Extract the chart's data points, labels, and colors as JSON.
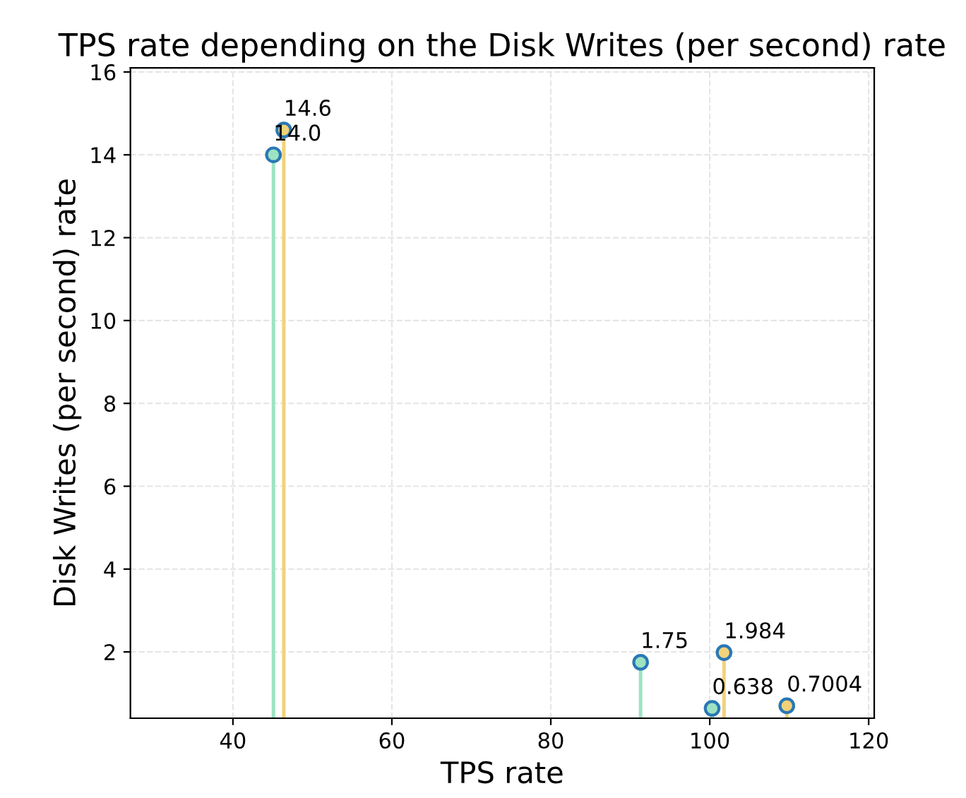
{
  "chart_data": {
    "type": "lollipop",
    "title": "TPS rate depending on the Disk Writes (per second) rate",
    "xlabel": "TPS rate",
    "ylabel": "Disk Writes (per second) rate",
    "series": [
      {
        "color": "#9de3c2",
        "x": [
          45.1,
          91.3,
          100.3
        ],
        "values": [
          14.0,
          1.75,
          0.638
        ],
        "value_labels": [
          "14.0",
          "1.75",
          "0.638"
        ]
      },
      {
        "color": "#f2d27a",
        "x": [
          46.4,
          101.8,
          109.7
        ],
        "values": [
          14.6,
          1.984,
          0.7004
        ],
        "value_labels": [
          "14.6",
          "1.984",
          "0.7004"
        ]
      }
    ],
    "xlim": [
      27.1,
      120.7
    ],
    "xticks": [
      40,
      60,
      80,
      100,
      120
    ],
    "ylim": [
      0.4,
      16.1
    ],
    "yticks": [
      2,
      4,
      6,
      8,
      10,
      12,
      14,
      16
    ],
    "grid": true,
    "marker": "circle"
  }
}
